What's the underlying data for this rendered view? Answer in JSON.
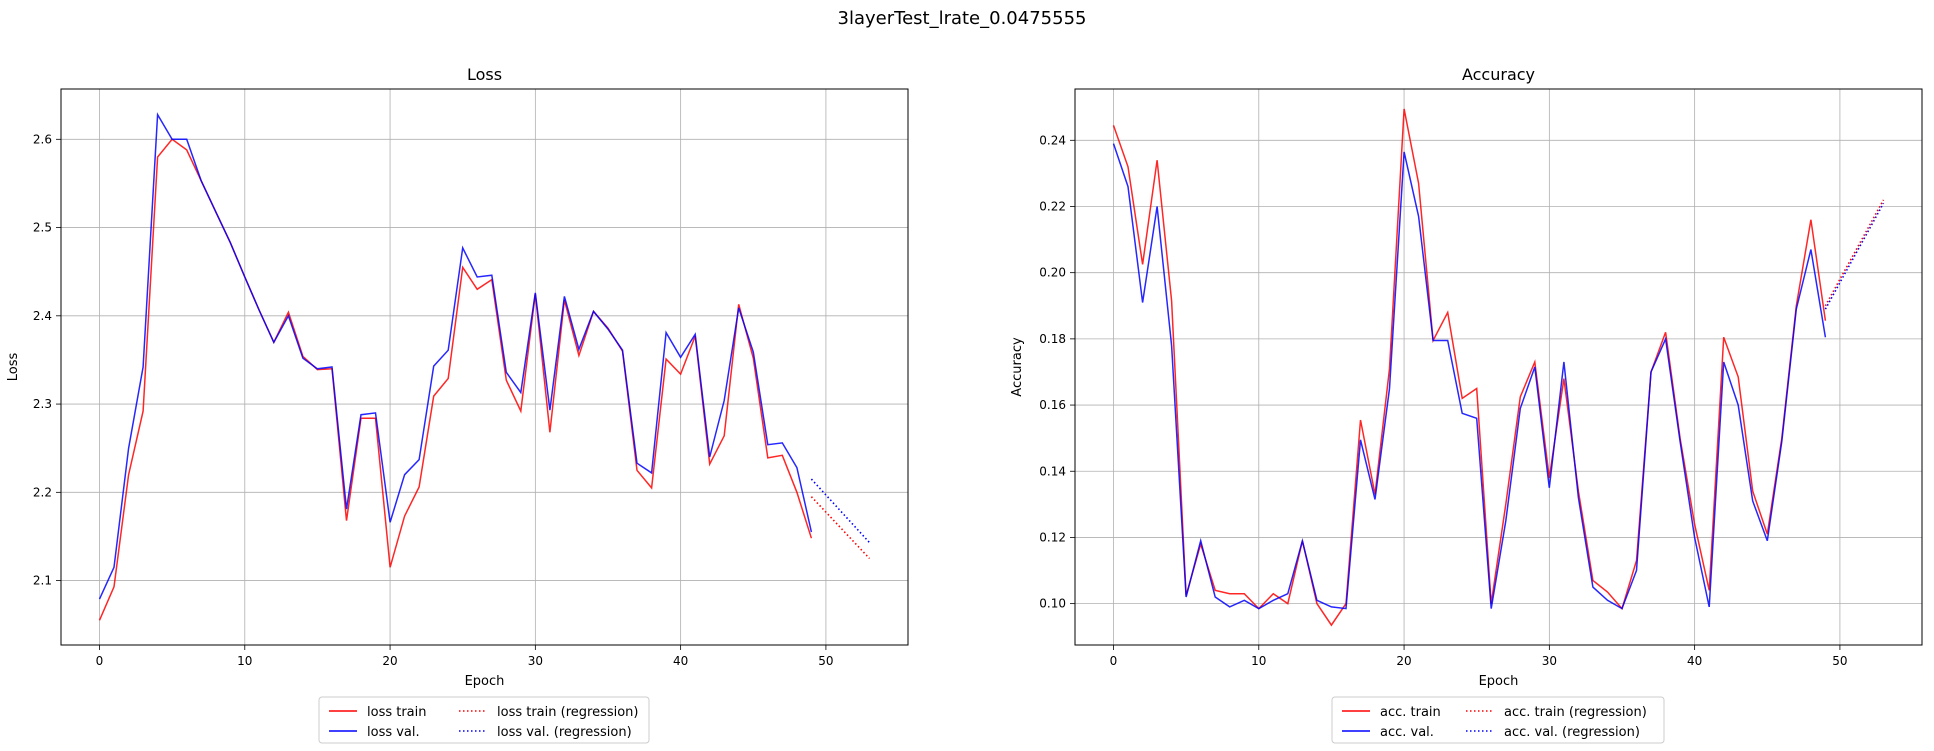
{
  "figure_title": "3layerTest_lrate_0.0475555",
  "colors": {
    "train": "#ff0000",
    "val": "#0000ff",
    "grid": "#b0b0b0"
  },
  "chart_data": [
    {
      "type": "line",
      "title": "Loss",
      "xlabel": "Epoch",
      "ylabel": "Loss",
      "xlim": [
        -2.65,
        55.65
      ],
      "ylim": [
        2.027,
        2.657
      ],
      "xticks": [
        0,
        10,
        20,
        30,
        40,
        50
      ],
      "yticks": [
        2.1,
        2.2,
        2.3,
        2.4,
        2.5,
        2.6
      ],
      "ytick_labels": [
        "2.1",
        "2.2",
        "2.3",
        "2.4",
        "2.5",
        "2.6"
      ],
      "grid": true,
      "legend_position": "bottom-center",
      "legend": [
        "loss train",
        "loss val.",
        "loss train (regression)",
        "loss val. (regression)"
      ],
      "series": [
        {
          "name": "loss train",
          "style": "solid",
          "color": "train",
          "x": [
            0,
            1,
            2,
            3,
            4,
            5,
            6,
            7,
            8,
            9,
            10,
            11,
            12,
            13,
            14,
            15,
            16,
            17,
            18,
            19,
            20,
            21,
            22,
            23,
            24,
            25,
            26,
            27,
            28,
            29,
            30,
            31,
            32,
            33,
            34,
            35,
            36,
            37,
            38,
            39,
            40,
            41,
            42,
            43,
            44,
            45,
            46,
            47,
            48,
            49
          ],
          "y": [
            2.055,
            2.093,
            2.22,
            2.292,
            2.58,
            2.6,
            2.588,
            2.553,
            2.518,
            2.483,
            2.444,
            2.406,
            2.37,
            2.404,
            2.354,
            2.339,
            2.34,
            2.168,
            2.284,
            2.284,
            2.115,
            2.173,
            2.206,
            2.309,
            2.329,
            2.455,
            2.43,
            2.441,
            2.327,
            2.292,
            2.425,
            2.268,
            2.418,
            2.355,
            2.405,
            2.386,
            2.36,
            2.225,
            2.205,
            2.351,
            2.334,
            2.377,
            2.232,
            2.264,
            2.413,
            2.352,
            2.239,
            2.242,
            2.2,
            2.148
          ]
        },
        {
          "name": "loss val.",
          "style": "solid",
          "color": "val",
          "x": [
            0,
            1,
            2,
            3,
            4,
            5,
            6,
            7,
            8,
            9,
            10,
            11,
            12,
            13,
            14,
            15,
            16,
            17,
            18,
            19,
            20,
            21,
            22,
            23,
            24,
            25,
            26,
            27,
            28,
            29,
            30,
            31,
            32,
            33,
            34,
            35,
            36,
            37,
            38,
            39,
            40,
            41,
            42,
            43,
            44,
            45,
            46,
            47,
            48,
            49
          ],
          "y": [
            2.079,
            2.115,
            2.25,
            2.342,
            2.628,
            2.6,
            2.6,
            2.553,
            2.518,
            2.483,
            2.444,
            2.406,
            2.37,
            2.4,
            2.352,
            2.34,
            2.342,
            2.181,
            2.288,
            2.29,
            2.166,
            2.22,
            2.237,
            2.343,
            2.361,
            2.477,
            2.444,
            2.446,
            2.336,
            2.313,
            2.426,
            2.293,
            2.422,
            2.362,
            2.405,
            2.385,
            2.361,
            2.233,
            2.222,
            2.381,
            2.353,
            2.379,
            2.24,
            2.304,
            2.409,
            2.359,
            2.254,
            2.256,
            2.228,
            2.155
          ]
        },
        {
          "name": "loss train (regression)",
          "style": "dotted",
          "color": "train",
          "x": [
            49,
            53
          ],
          "y": [
            2.195,
            2.125
          ]
        },
        {
          "name": "loss val. (regression)",
          "style": "dotted",
          "color": "val",
          "x": [
            49,
            53
          ],
          "y": [
            2.215,
            2.143
          ]
        }
      ]
    },
    {
      "type": "line",
      "title": "Accuracy",
      "xlabel": "Epoch",
      "ylabel": "Accuracy",
      "xlim": [
        -2.65,
        55.65
      ],
      "ylim": [
        0.0875,
        0.2555
      ],
      "xticks": [
        0,
        10,
        20,
        30,
        40,
        50
      ],
      "yticks": [
        0.1,
        0.12,
        0.14,
        0.16,
        0.18,
        0.2,
        0.22,
        0.24
      ],
      "ytick_labels": [
        "0.10",
        "0.12",
        "0.14",
        "0.16",
        "0.18",
        "0.20",
        "0.22",
        "0.24"
      ],
      "grid": true,
      "legend_position": "bottom-center",
      "legend": [
        "acc. train",
        "acc. val.",
        "acc. train (regression)",
        "acc. val. (regression)"
      ],
      "series": [
        {
          "name": "acc. train",
          "style": "solid",
          "color": "train",
          "x": [
            0,
            1,
            2,
            3,
            4,
            5,
            6,
            7,
            8,
            9,
            10,
            11,
            12,
            13,
            14,
            15,
            16,
            17,
            18,
            19,
            20,
            21,
            22,
            23,
            24,
            25,
            26,
            27,
            28,
            29,
            30,
            31,
            32,
            33,
            34,
            35,
            36,
            37,
            38,
            39,
            40,
            41,
            42,
            43,
            44,
            45,
            46,
            47,
            48,
            49
          ],
          "y": [
            0.2445,
            0.232,
            0.2025,
            0.234,
            0.1915,
            0.1025,
            0.118,
            0.104,
            0.103,
            0.103,
            0.0985,
            0.103,
            0.1,
            0.119,
            0.1,
            0.0935,
            0.1,
            0.1555,
            0.133,
            0.171,
            0.2495,
            0.227,
            0.1795,
            0.188,
            0.162,
            0.165,
            0.1,
            0.13,
            0.1625,
            0.173,
            0.138,
            0.168,
            0.134,
            0.107,
            0.1035,
            0.0985,
            0.113,
            0.17,
            0.182,
            0.15,
            0.124,
            0.104,
            0.1805,
            0.1685,
            0.134,
            0.121,
            0.15,
            0.19,
            0.216,
            0.1855
          ]
        },
        {
          "name": "acc. val.",
          "style": "solid",
          "color": "val",
          "x": [
            0,
            1,
            2,
            3,
            4,
            5,
            6,
            7,
            8,
            9,
            10,
            11,
            12,
            13,
            14,
            15,
            16,
            17,
            18,
            19,
            20,
            21,
            22,
            23,
            24,
            25,
            26,
            27,
            28,
            29,
            30,
            31,
            32,
            33,
            34,
            35,
            36,
            37,
            38,
            39,
            40,
            41,
            42,
            43,
            44,
            45,
            46,
            47,
            48,
            49
          ],
          "y": [
            0.239,
            0.226,
            0.191,
            0.22,
            0.178,
            0.102,
            0.119,
            0.102,
            0.099,
            0.101,
            0.0985,
            0.101,
            0.103,
            0.119,
            0.101,
            0.099,
            0.0985,
            0.1495,
            0.1315,
            0.165,
            0.2365,
            0.217,
            0.1795,
            0.1795,
            0.1575,
            0.156,
            0.0985,
            0.125,
            0.159,
            0.1715,
            0.135,
            0.173,
            0.132,
            0.105,
            0.101,
            0.0985,
            0.11,
            0.17,
            0.18,
            0.149,
            0.12,
            0.099,
            0.173,
            0.16,
            0.131,
            0.119,
            0.149,
            0.189,
            0.207,
            0.1805
          ]
        },
        {
          "name": "acc. train (regression)",
          "style": "dotted",
          "color": "train",
          "x": [
            49,
            53
          ],
          "y": [
            0.19,
            0.222
          ]
        },
        {
          "name": "acc. val. (regression)",
          "style": "dotted",
          "color": "val",
          "x": [
            49,
            53
          ],
          "y": [
            0.189,
            0.221
          ]
        }
      ]
    }
  ]
}
